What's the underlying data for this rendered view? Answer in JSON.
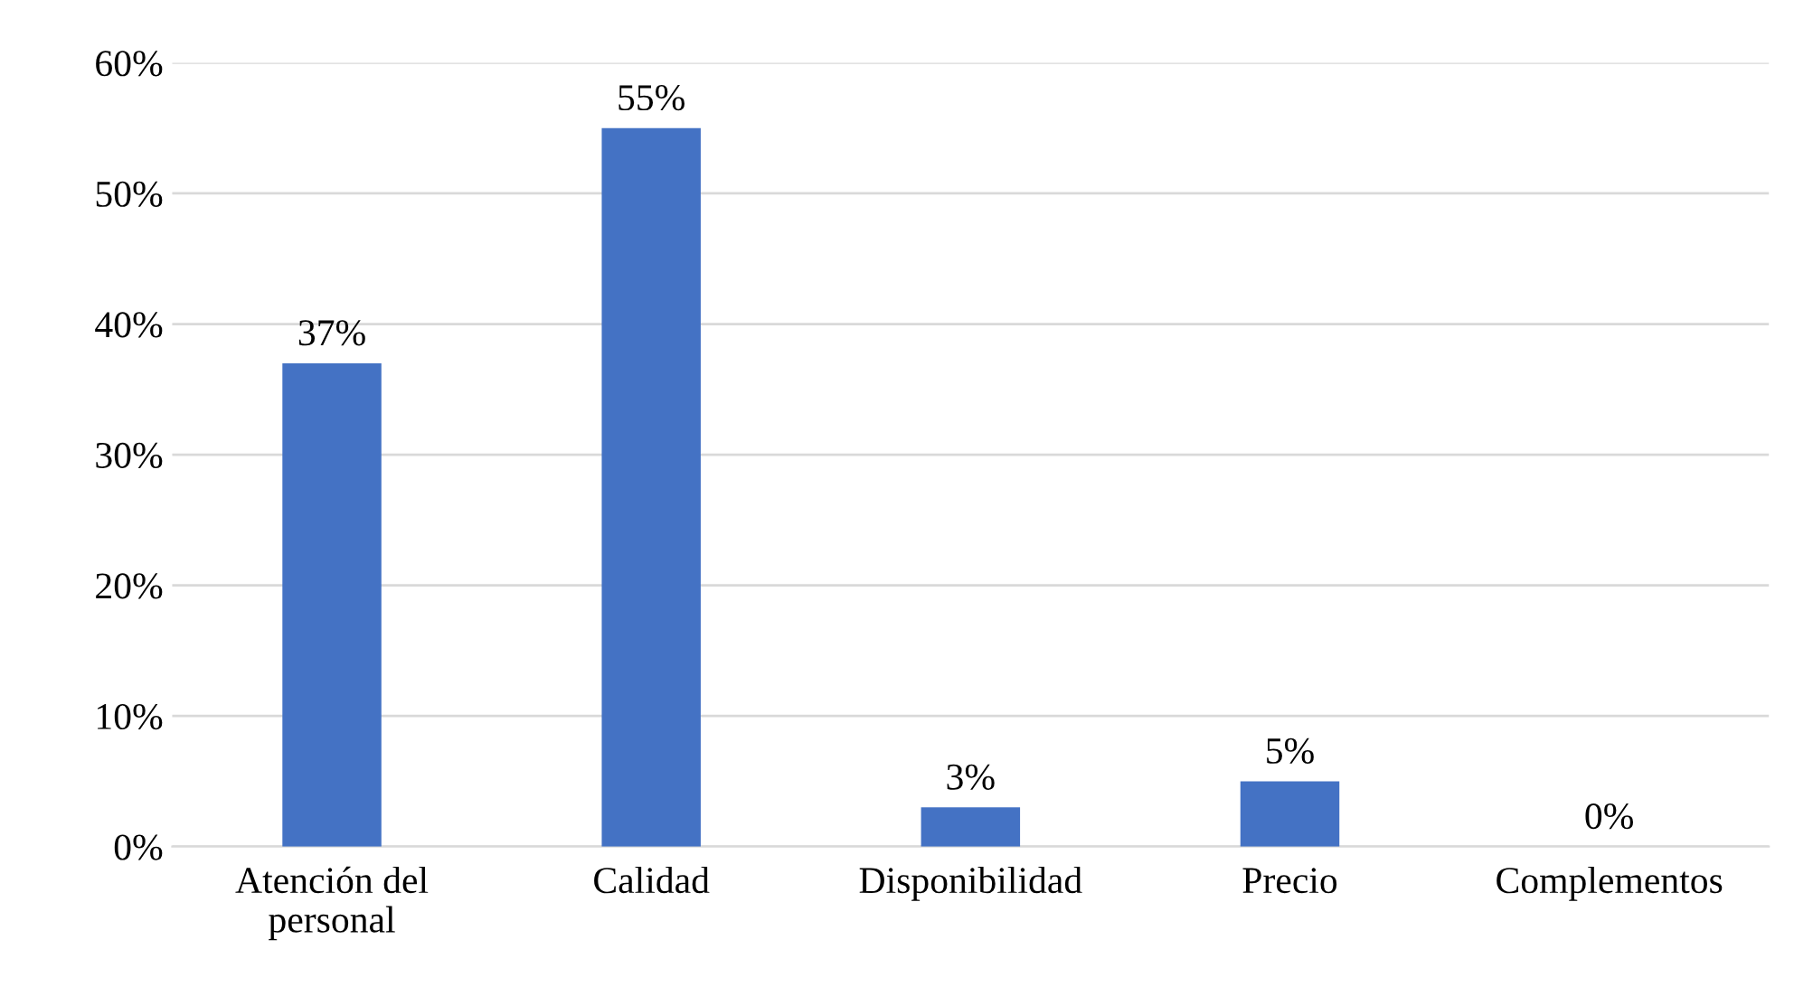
{
  "chart_data": {
    "type": "bar",
    "categories": [
      "Atención del personal",
      "Calidad",
      "Disponibilidad",
      "Precio",
      "Complementos"
    ],
    "values": [
      37,
      55,
      3,
      5,
      0
    ],
    "value_labels": [
      "37%",
      "55%",
      "3%",
      "5%",
      "0%"
    ],
    "color": "#4472c4",
    "ylim": [
      0,
      60
    ],
    "yticks": [
      {
        "value": 0,
        "label": "0%"
      },
      {
        "value": 10,
        "label": "10%"
      },
      {
        "value": 20,
        "label": "20%"
      },
      {
        "value": 30,
        "label": "30%"
      },
      {
        "value": 40,
        "label": "40%"
      },
      {
        "value": 50,
        "label": "50%"
      },
      {
        "value": 60,
        "label": "60%"
      }
    ],
    "grid": "y"
  }
}
